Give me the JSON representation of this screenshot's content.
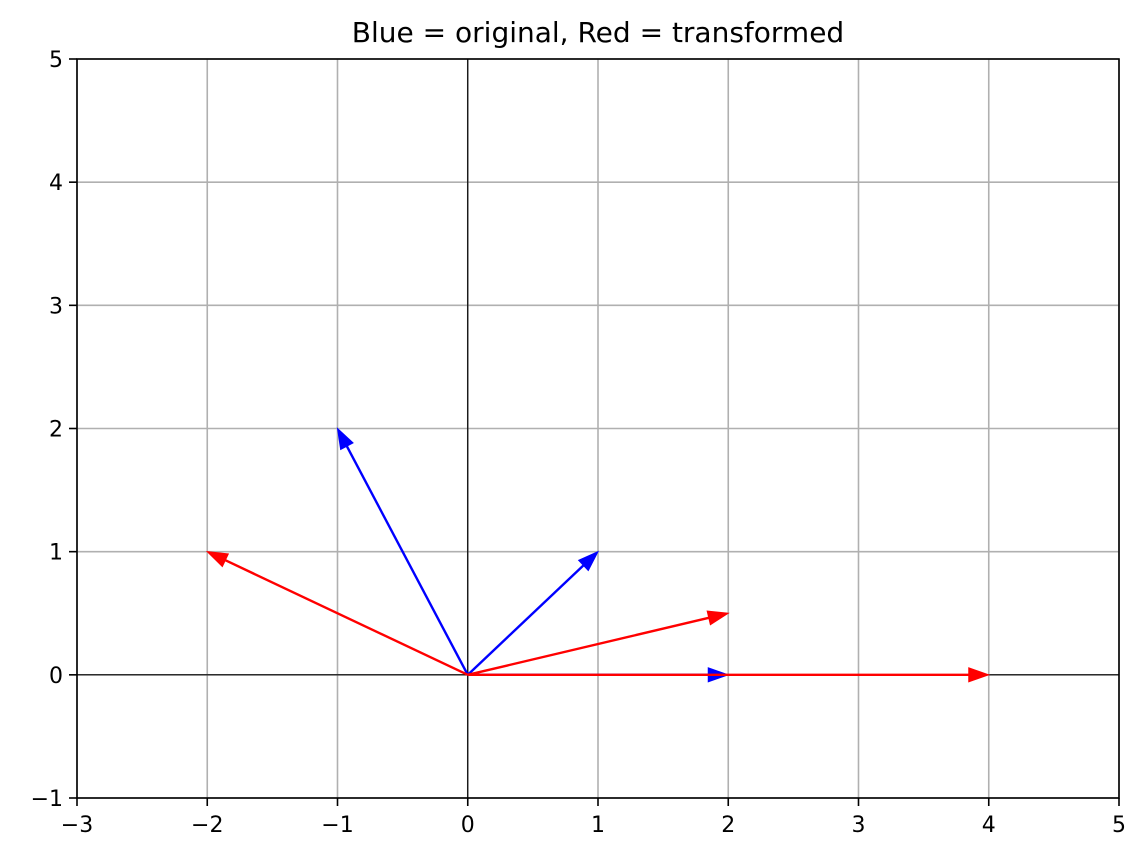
{
  "chart_data": {
    "type": "vector-plot",
    "title": "Blue = original, Red = transformed",
    "xlabel": "",
    "ylabel": "",
    "xlim": [
      -3,
      5
    ],
    "ylim": [
      -1,
      5
    ],
    "xticks": [
      -3,
      -2,
      -1,
      0,
      1,
      2,
      3,
      4,
      5
    ],
    "yticks": [
      -1,
      0,
      1,
      2,
      3,
      4,
      5
    ],
    "xtick_labels": [
      "−3",
      "−2",
      "−1",
      "0",
      "1",
      "2",
      "3",
      "4",
      "5"
    ],
    "ytick_labels": [
      "−1",
      "0",
      "1",
      "2",
      "3",
      "4",
      "5"
    ],
    "grid": true,
    "origin_axes": true,
    "colors": {
      "original": "#0000ff",
      "transformed": "#ff0000",
      "grid": "#b0b0b0",
      "axes": "#000000"
    },
    "series": [
      {
        "role": "original",
        "color": "#0000ff",
        "vectors": [
          {
            "x0": 0,
            "y0": 0,
            "x": 1,
            "y": 1
          },
          {
            "x0": 0,
            "y0": 0,
            "x": -1,
            "y": 2
          },
          {
            "x0": 0,
            "y0": 0,
            "x": 2,
            "y": 0
          }
        ]
      },
      {
        "role": "transformed",
        "color": "#ff0000",
        "vectors": [
          {
            "x0": 0,
            "y0": 0,
            "x": 2,
            "y": 0.5
          },
          {
            "x0": 0,
            "y0": 0,
            "x": -2,
            "y": 1
          },
          {
            "x0": 0,
            "y0": 0,
            "x": 4,
            "y": 0
          }
        ]
      }
    ]
  }
}
